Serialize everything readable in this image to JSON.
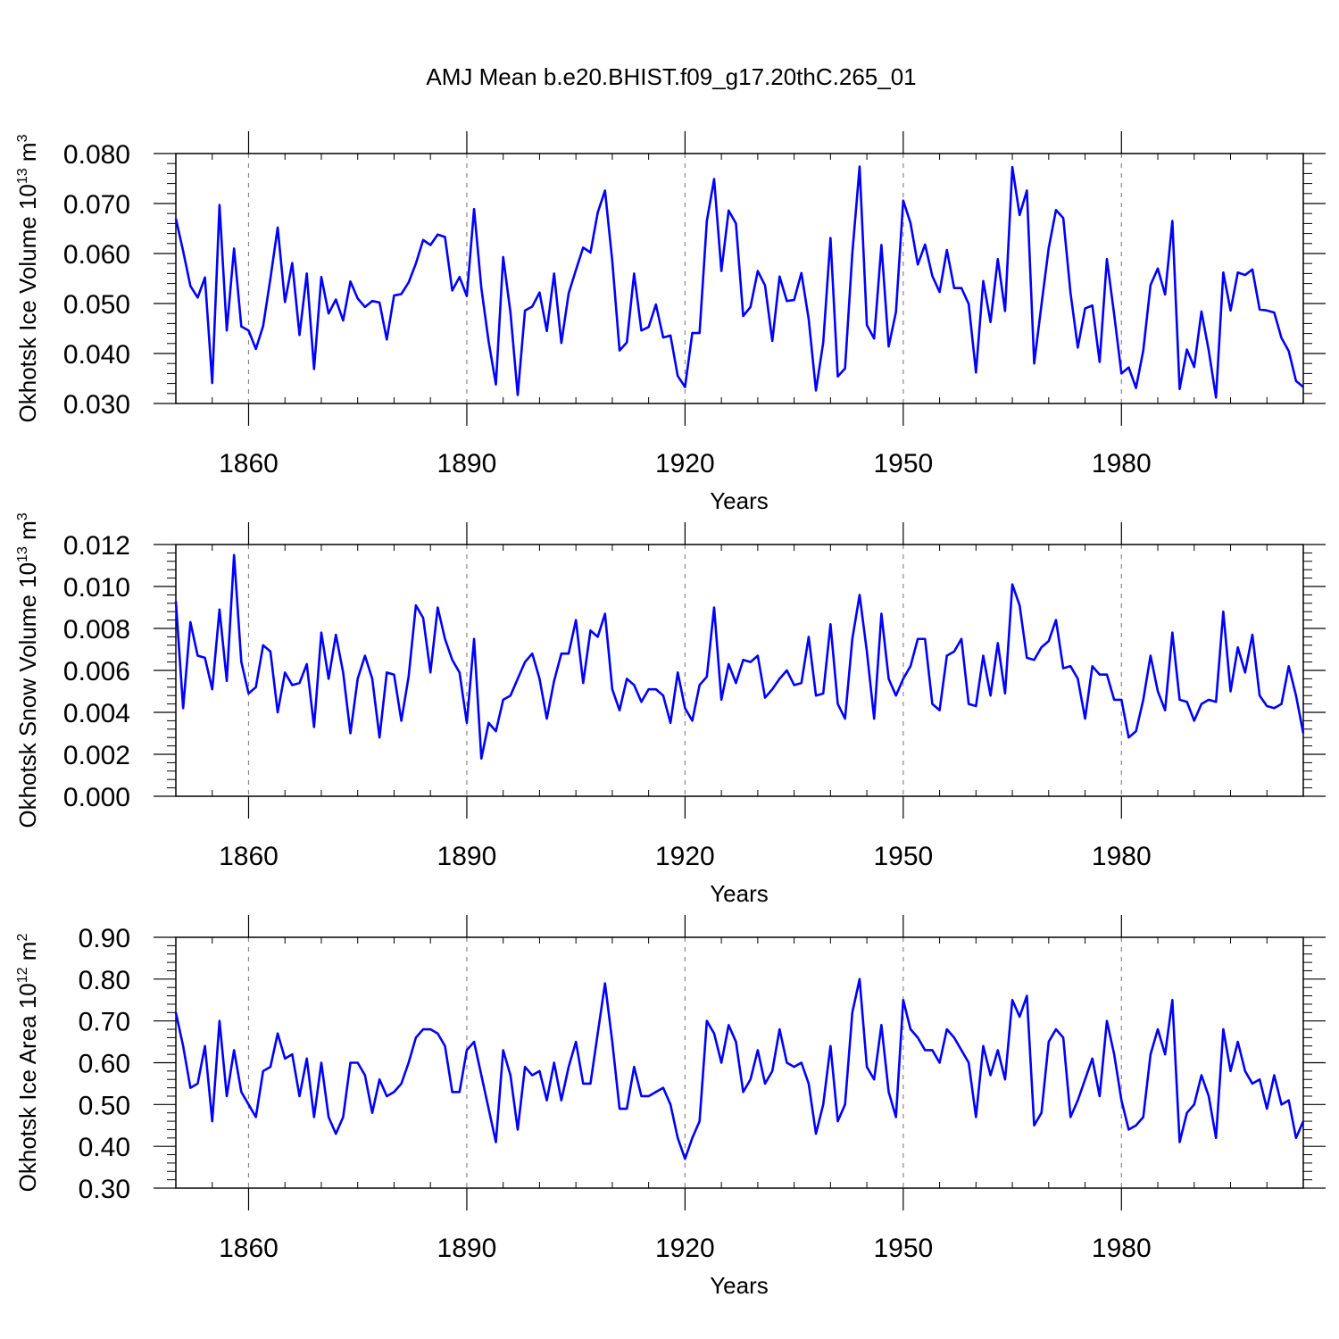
{
  "title": "AMJ Mean b.e20.BHIST.f09_g17.20thC.265_01",
  "line_color": "#0000ff",
  "chart_data": [
    {
      "type": "line",
      "ylabel": {
        "text": "Okhotsk Ice Volume 10",
        "exp": "13",
        "unit": " m",
        "unit_exp": "3"
      },
      "xlabel": "Years",
      "xlim": [
        1850,
        2005
      ],
      "ylim": [
        0.03,
        0.08
      ],
      "yticks": [
        "0.030",
        "0.040",
        "0.050",
        "0.060",
        "0.070",
        "0.080"
      ],
      "xticks": [
        "1860",
        "1890",
        "1920",
        "1950",
        "1980"
      ],
      "x_start": 1850,
      "values": [
        0.067,
        0.0605,
        0.0535,
        0.0512,
        0.0552,
        0.0341,
        0.0697,
        0.0446,
        0.061,
        0.0454,
        0.0446,
        0.0409,
        0.0455,
        0.055,
        0.0652,
        0.0503,
        0.0581,
        0.0437,
        0.056,
        0.0369,
        0.0553,
        0.048,
        0.0508,
        0.0466,
        0.0544,
        0.051,
        0.0493,
        0.0505,
        0.0502,
        0.0428,
        0.0516,
        0.0519,
        0.0542,
        0.058,
        0.0627,
        0.0617,
        0.0638,
        0.0633,
        0.0526,
        0.0553,
        0.0515,
        0.0689,
        0.0531,
        0.0424,
        0.0338,
        0.0593,
        0.0482,
        0.0317,
        0.0486,
        0.0494,
        0.0522,
        0.0445,
        0.056,
        0.0421,
        0.052,
        0.0567,
        0.0612,
        0.0602,
        0.0682,
        0.0726,
        0.0585,
        0.0406,
        0.0422,
        0.056,
        0.0446,
        0.0453,
        0.0498,
        0.0432,
        0.0436,
        0.0355,
        0.0333,
        0.0441,
        0.0441,
        0.0665,
        0.0749,
        0.0565,
        0.0686,
        0.066,
        0.0475,
        0.0493,
        0.0565,
        0.0536,
        0.0425,
        0.0554,
        0.0505,
        0.0507,
        0.0561,
        0.0469,
        0.0326,
        0.0422,
        0.0631,
        0.0354,
        0.037,
        0.06,
        0.0774,
        0.0457,
        0.043,
        0.0617,
        0.0414,
        0.0483,
        0.0706,
        0.0661,
        0.0578,
        0.0618,
        0.0555,
        0.0523,
        0.0607,
        0.0531,
        0.0531,
        0.0499,
        0.0362,
        0.0545,
        0.0463,
        0.0589,
        0.0485,
        0.0773,
        0.0677,
        0.0726,
        0.038,
        0.0497,
        0.0611,
        0.0687,
        0.0671,
        0.0521,
        0.0412,
        0.049,
        0.0496,
        0.0383,
        0.0589,
        0.0478,
        0.036,
        0.0372,
        0.0331,
        0.0406,
        0.0537,
        0.057,
        0.0518,
        0.0665,
        0.0329,
        0.0408,
        0.0373,
        0.0484,
        0.0406,
        0.0312,
        0.0562,
        0.0486,
        0.0562,
        0.0557,
        0.0568,
        0.0488,
        0.0486,
        0.0482,
        0.0431,
        0.0405,
        0.0345,
        0.0333
      ]
    },
    {
      "type": "line",
      "ylabel": {
        "text": "Okhotsk Snow Volume 10",
        "exp": "13",
        "unit": " m",
        "unit_exp": "3"
      },
      "xlabel": "Years",
      "xlim": [
        1850,
        2005
      ],
      "ylim": [
        0.0,
        0.012
      ],
      "yticks": [
        "0.000",
        "0.002",
        "0.004",
        "0.006",
        "0.008",
        "0.010",
        "0.012"
      ],
      "xticks": [
        "1860",
        "1890",
        "1920",
        "1950",
        "1980"
      ],
      "x_start": 1850,
      "values": [
        0.0093,
        0.0042,
        0.0083,
        0.0067,
        0.0066,
        0.0051,
        0.0089,
        0.0055,
        0.0115,
        0.0064,
        0.0049,
        0.0052,
        0.0072,
        0.0069,
        0.004,
        0.0059,
        0.0053,
        0.0054,
        0.0063,
        0.0033,
        0.0078,
        0.0056,
        0.0077,
        0.0059,
        0.003,
        0.0056,
        0.0067,
        0.0056,
        0.0028,
        0.0059,
        0.0058,
        0.0036,
        0.0057,
        0.0091,
        0.0085,
        0.0059,
        0.009,
        0.0075,
        0.0065,
        0.0059,
        0.0035,
        0.0075,
        0.0018,
        0.0035,
        0.0031,
        0.0046,
        0.0048,
        0.0056,
        0.0064,
        0.0068,
        0.0056,
        0.0037,
        0.0055,
        0.0068,
        0.0068,
        0.0084,
        0.0054,
        0.0079,
        0.0076,
        0.0087,
        0.0051,
        0.0041,
        0.0056,
        0.0053,
        0.0045,
        0.0051,
        0.0051,
        0.0048,
        0.0035,
        0.0059,
        0.0042,
        0.0036,
        0.0053,
        0.0057,
        0.009,
        0.0046,
        0.0063,
        0.0054,
        0.0065,
        0.0064,
        0.0067,
        0.0047,
        0.0051,
        0.0056,
        0.006,
        0.0053,
        0.0054,
        0.0076,
        0.0048,
        0.0049,
        0.0082,
        0.0044,
        0.0037,
        0.0075,
        0.0096,
        0.0069,
        0.0037,
        0.0087,
        0.0056,
        0.0048,
        0.0056,
        0.0062,
        0.0075,
        0.0075,
        0.0044,
        0.0041,
        0.0067,
        0.0069,
        0.0075,
        0.0044,
        0.0043,
        0.0067,
        0.0048,
        0.0073,
        0.0049,
        0.0101,
        0.0091,
        0.0066,
        0.0065,
        0.0071,
        0.0074,
        0.0084,
        0.0061,
        0.0062,
        0.0056,
        0.0037,
        0.0062,
        0.0058,
        0.0058,
        0.0046,
        0.0046,
        0.0028,
        0.0031,
        0.0046,
        0.0067,
        0.005,
        0.0041,
        0.0078,
        0.0046,
        0.0045,
        0.0036,
        0.0044,
        0.0046,
        0.0045,
        0.0088,
        0.005,
        0.0071,
        0.0059,
        0.0077,
        0.0048,
        0.0043,
        0.0042,
        0.0044,
        0.0062,
        0.0048,
        0.003
      ]
    },
    {
      "type": "line",
      "ylabel": {
        "text": "Okhotsk Ice Area 10",
        "exp": "12",
        "unit": " m",
        "unit_exp": "2"
      },
      "xlabel": "Years",
      "xlim": [
        1850,
        2005
      ],
      "ylim": [
        0.3,
        0.9
      ],
      "yticks": [
        "0.30",
        "0.40",
        "0.50",
        "0.60",
        "0.70",
        "0.80",
        "0.90"
      ],
      "xticks": [
        "1860",
        "1890",
        "1920",
        "1950",
        "1980"
      ],
      "x_start": 1850,
      "values": [
        0.72,
        0.64,
        0.54,
        0.55,
        0.64,
        0.46,
        0.7,
        0.52,
        0.63,
        0.53,
        0.5,
        0.47,
        0.58,
        0.59,
        0.67,
        0.61,
        0.62,
        0.52,
        0.61,
        0.47,
        0.6,
        0.47,
        0.43,
        0.47,
        0.6,
        0.6,
        0.57,
        0.48,
        0.56,
        0.52,
        0.53,
        0.55,
        0.6,
        0.66,
        0.68,
        0.68,
        0.67,
        0.64,
        0.53,
        0.53,
        0.63,
        0.65,
        0.57,
        0.49,
        0.41,
        0.63,
        0.57,
        0.44,
        0.59,
        0.57,
        0.58,
        0.51,
        0.6,
        0.51,
        0.59,
        0.65,
        0.55,
        0.55,
        0.67,
        0.79,
        0.65,
        0.49,
        0.49,
        0.59,
        0.52,
        0.52,
        0.53,
        0.54,
        0.5,
        0.42,
        0.37,
        0.42,
        0.46,
        0.7,
        0.67,
        0.6,
        0.69,
        0.65,
        0.53,
        0.56,
        0.63,
        0.55,
        0.58,
        0.68,
        0.6,
        0.59,
        0.6,
        0.55,
        0.43,
        0.5,
        0.64,
        0.46,
        0.5,
        0.72,
        0.8,
        0.59,
        0.56,
        0.69,
        0.53,
        0.47,
        0.75,
        0.68,
        0.66,
        0.63,
        0.63,
        0.6,
        0.68,
        0.66,
        0.63,
        0.6,
        0.47,
        0.64,
        0.57,
        0.63,
        0.56,
        0.75,
        0.71,
        0.76,
        0.45,
        0.48,
        0.65,
        0.68,
        0.66,
        0.47,
        0.51,
        0.56,
        0.61,
        0.52,
        0.7,
        0.62,
        0.51,
        0.44,
        0.45,
        0.47,
        0.62,
        0.68,
        0.62,
        0.75,
        0.41,
        0.48,
        0.5,
        0.57,
        0.52,
        0.42,
        0.68,
        0.58,
        0.65,
        0.58,
        0.55,
        0.56,
        0.49,
        0.57,
        0.5,
        0.51,
        0.42,
        0.46
      ]
    }
  ]
}
